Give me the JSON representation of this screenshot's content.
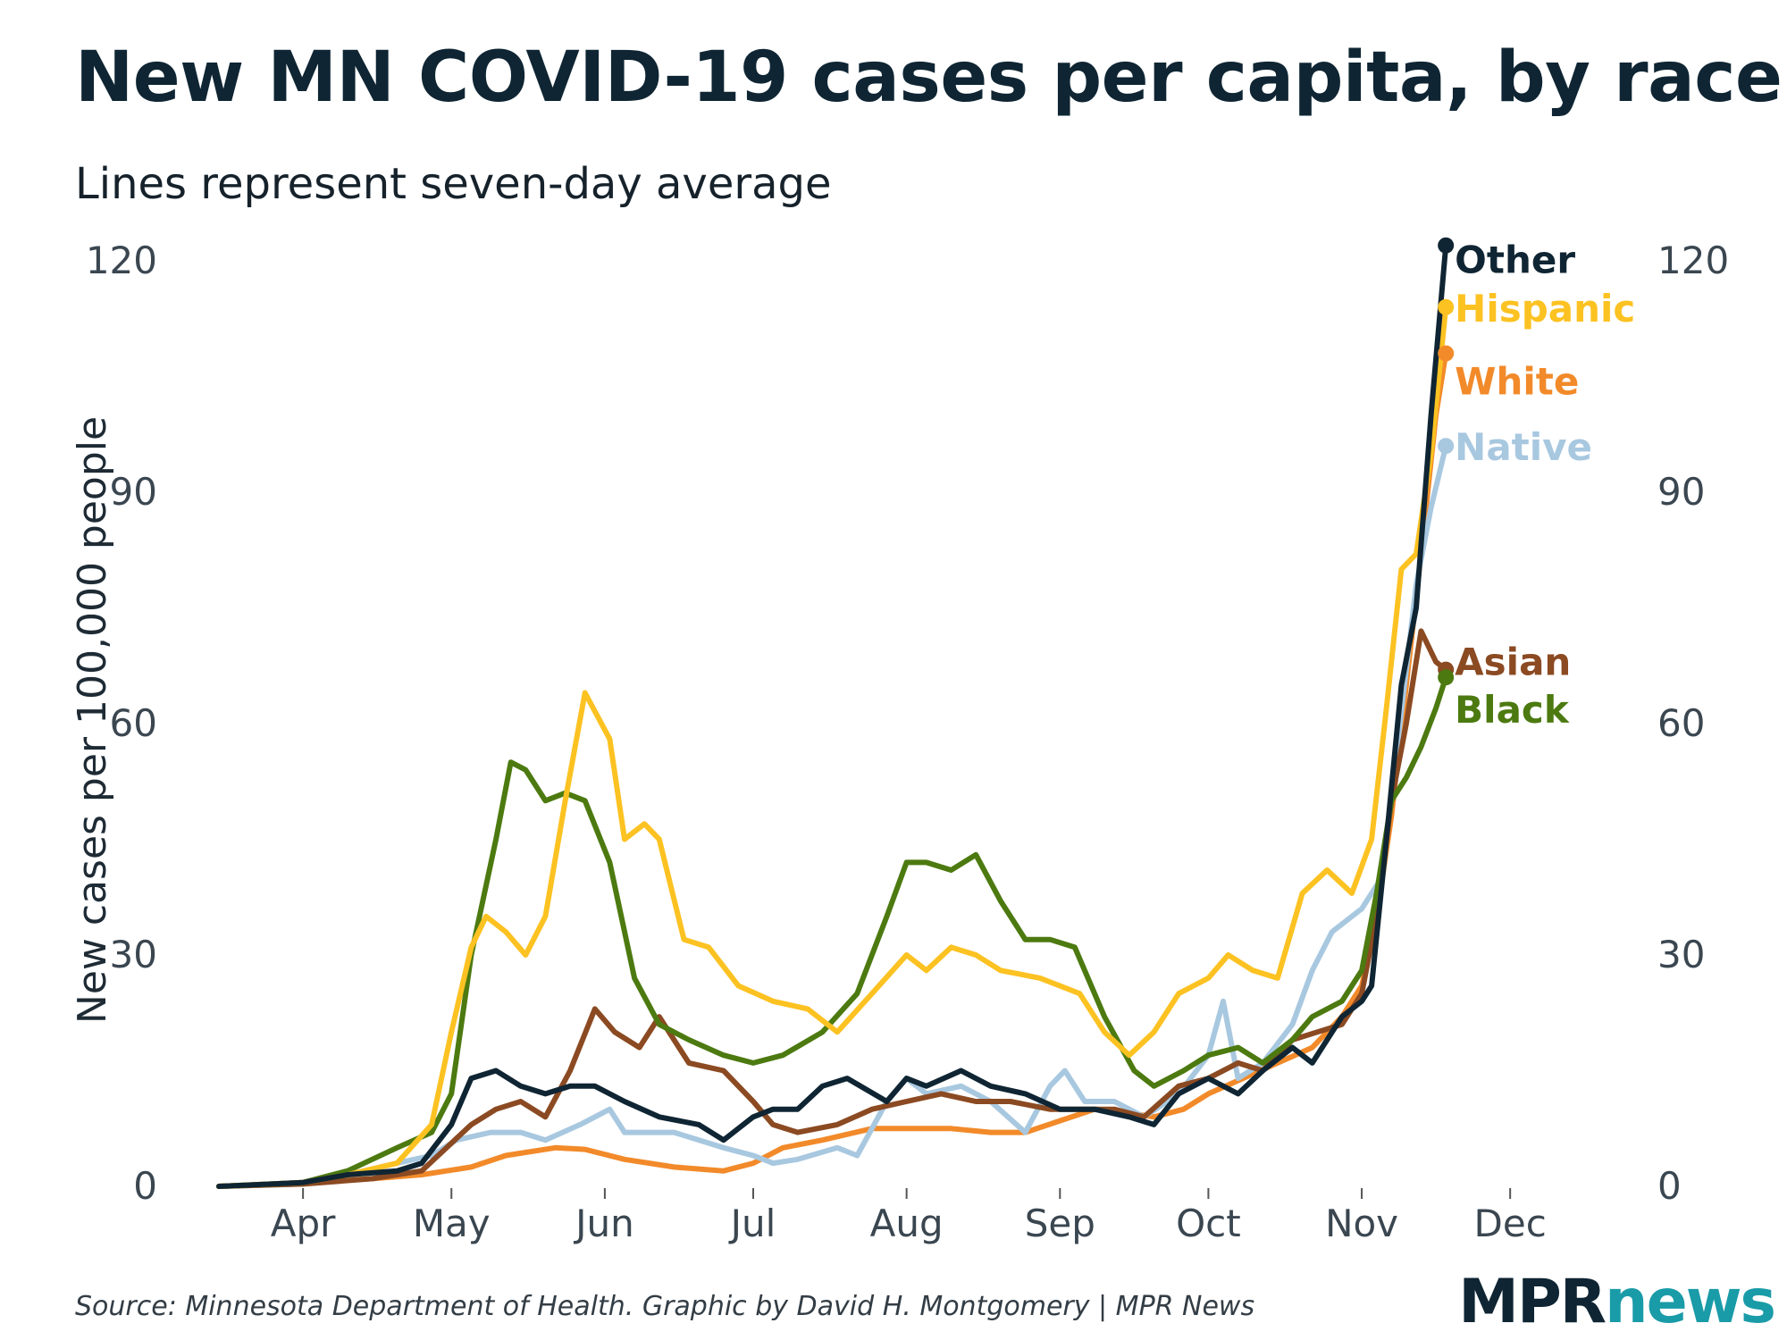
{
  "header": {
    "title": "New MN COVID-19 cases per capita, by race",
    "subtitle": "Lines represent seven-day average"
  },
  "footer": {
    "source": "Source: Minnesota Department of Health. Graphic by David H. Montgomery | MPR News",
    "logo_part1": "MPR",
    "logo_part2": "news"
  },
  "chart_data": {
    "type": "line",
    "title": "New MN COVID-19 cases per capita, by race",
    "subtitle": "Lines represent seven-day average",
    "ylabel": "New cases per 100,000 people",
    "xlabel": "",
    "ylim": [
      0,
      120
    ],
    "yticks": [
      0,
      30,
      60,
      90,
      120
    ],
    "xlim": [
      "2020-03-15",
      "2020-12-10"
    ],
    "xticks": [
      {
        "date": "2020-04-01",
        "label": "Apr"
      },
      {
        "date": "2020-05-01",
        "label": "May"
      },
      {
        "date": "2020-06-01",
        "label": "Jun"
      },
      {
        "date": "2020-07-01",
        "label": "Jul"
      },
      {
        "date": "2020-08-01",
        "label": "Aug"
      },
      {
        "date": "2020-09-01",
        "label": "Sep"
      },
      {
        "date": "2020-10-01",
        "label": "Oct"
      },
      {
        "date": "2020-11-01",
        "label": "Nov"
      },
      {
        "date": "2020-12-01",
        "label": "Dec"
      }
    ],
    "grid": false,
    "legend": "direct labels at line ends",
    "series": [
      {
        "name": "White",
        "color": "#f28a2a",
        "label_dy": 30,
        "points": [
          [
            "2020-03-15",
            0
          ],
          [
            "2020-04-01",
            0.5
          ],
          [
            "2020-04-15",
            1
          ],
          [
            "2020-04-25",
            1.5
          ],
          [
            "2020-05-05",
            2.5
          ],
          [
            "2020-05-12",
            4
          ],
          [
            "2020-05-22",
            5
          ],
          [
            "2020-05-28",
            4.8
          ],
          [
            "2020-06-05",
            3.5
          ],
          [
            "2020-06-15",
            2.5
          ],
          [
            "2020-06-25",
            2
          ],
          [
            "2020-07-01",
            3
          ],
          [
            "2020-07-07",
            5
          ],
          [
            "2020-07-15",
            6
          ],
          [
            "2020-07-25",
            7.5
          ],
          [
            "2020-08-01",
            7.5
          ],
          [
            "2020-08-10",
            7.5
          ],
          [
            "2020-08-18",
            7
          ],
          [
            "2020-08-25",
            7
          ],
          [
            "2020-09-01",
            8.5
          ],
          [
            "2020-09-08",
            10
          ],
          [
            "2020-09-15",
            9.5
          ],
          [
            "2020-09-20",
            9
          ],
          [
            "2020-09-26",
            10
          ],
          [
            "2020-10-01",
            12
          ],
          [
            "2020-10-08",
            14
          ],
          [
            "2020-10-15",
            16
          ],
          [
            "2020-10-22",
            18
          ],
          [
            "2020-10-28",
            22
          ],
          [
            "2020-11-01",
            26
          ],
          [
            "2020-11-04",
            35
          ],
          [
            "2020-11-07",
            48
          ],
          [
            "2020-11-10",
            65
          ],
          [
            "2020-11-13",
            82
          ],
          [
            "2020-11-16",
            100
          ],
          [
            "2020-11-18",
            108
          ]
        ]
      },
      {
        "name": "Native",
        "color": "#a8c8e0",
        "label_dy": 0,
        "points": [
          [
            "2020-03-15",
            0
          ],
          [
            "2020-04-01",
            0.3
          ],
          [
            "2020-04-10",
            1.5
          ],
          [
            "2020-04-20",
            3
          ],
          [
            "2020-04-27",
            4
          ],
          [
            "2020-05-02",
            6
          ],
          [
            "2020-05-09",
            7
          ],
          [
            "2020-05-15",
            7
          ],
          [
            "2020-05-20",
            6
          ],
          [
            "2020-05-27",
            8
          ],
          [
            "2020-06-02",
            10
          ],
          [
            "2020-06-05",
            7
          ],
          [
            "2020-06-15",
            7
          ],
          [
            "2020-06-25",
            5
          ],
          [
            "2020-07-01",
            4
          ],
          [
            "2020-07-05",
            3
          ],
          [
            "2020-07-10",
            3.5
          ],
          [
            "2020-07-18",
            5
          ],
          [
            "2020-07-22",
            4
          ],
          [
            "2020-07-28",
            11
          ],
          [
            "2020-08-01",
            14
          ],
          [
            "2020-08-05",
            12
          ],
          [
            "2020-08-12",
            13
          ],
          [
            "2020-08-18",
            11
          ],
          [
            "2020-08-25",
            7
          ],
          [
            "2020-08-30",
            13
          ],
          [
            "2020-09-02",
            15
          ],
          [
            "2020-09-06",
            11
          ],
          [
            "2020-09-12",
            11
          ],
          [
            "2020-09-18",
            9
          ],
          [
            "2020-09-25",
            12
          ],
          [
            "2020-10-01",
            17
          ],
          [
            "2020-10-04",
            24
          ],
          [
            "2020-10-07",
            14
          ],
          [
            "2020-10-12",
            16
          ],
          [
            "2020-10-18",
            21
          ],
          [
            "2020-10-22",
            28
          ],
          [
            "2020-10-26",
            33
          ],
          [
            "2020-11-01",
            36
          ],
          [
            "2020-11-05",
            40
          ],
          [
            "2020-11-08",
            56
          ],
          [
            "2020-11-12",
            78
          ],
          [
            "2020-11-15",
            88
          ],
          [
            "2020-11-18",
            96
          ]
        ]
      },
      {
        "name": "Asian",
        "color": "#8b4a22",
        "label_dy": -10,
        "points": [
          [
            "2020-03-15",
            0
          ],
          [
            "2020-04-01",
            0.3
          ],
          [
            "2020-04-15",
            1
          ],
          [
            "2020-04-25",
            2
          ],
          [
            "2020-04-30",
            5
          ],
          [
            "2020-05-05",
            8
          ],
          [
            "2020-05-10",
            10
          ],
          [
            "2020-05-15",
            11
          ],
          [
            "2020-05-20",
            9
          ],
          [
            "2020-05-25",
            15
          ],
          [
            "2020-05-30",
            23
          ],
          [
            "2020-06-03",
            20
          ],
          [
            "2020-06-08",
            18
          ],
          [
            "2020-06-12",
            22
          ],
          [
            "2020-06-18",
            16
          ],
          [
            "2020-06-25",
            15
          ],
          [
            "2020-07-01",
            11
          ],
          [
            "2020-07-05",
            8
          ],
          [
            "2020-07-10",
            7
          ],
          [
            "2020-07-18",
            8
          ],
          [
            "2020-07-25",
            10
          ],
          [
            "2020-08-01",
            11
          ],
          [
            "2020-08-08",
            12
          ],
          [
            "2020-08-15",
            11
          ],
          [
            "2020-08-22",
            11
          ],
          [
            "2020-08-30",
            10
          ],
          [
            "2020-09-05",
            10
          ],
          [
            "2020-09-12",
            10
          ],
          [
            "2020-09-18",
            9
          ],
          [
            "2020-09-25",
            13
          ],
          [
            "2020-10-01",
            14
          ],
          [
            "2020-10-07",
            16
          ],
          [
            "2020-10-12",
            15
          ],
          [
            "2020-10-18",
            19
          ],
          [
            "2020-10-23",
            20
          ],
          [
            "2020-10-28",
            21
          ],
          [
            "2020-11-01",
            25
          ],
          [
            "2020-11-04",
            35
          ],
          [
            "2020-11-07",
            50
          ],
          [
            "2020-11-10",
            60
          ],
          [
            "2020-11-13",
            72
          ],
          [
            "2020-11-16",
            68
          ],
          [
            "2020-11-18",
            67
          ]
        ]
      },
      {
        "name": "Black",
        "color": "#4c7a10",
        "label_dy": 35,
        "points": [
          [
            "2020-03-15",
            0
          ],
          [
            "2020-04-01",
            0.5
          ],
          [
            "2020-04-10",
            2
          ],
          [
            "2020-04-20",
            5
          ],
          [
            "2020-04-27",
            7
          ],
          [
            "2020-05-01",
            12
          ],
          [
            "2020-05-05",
            30
          ],
          [
            "2020-05-10",
            45
          ],
          [
            "2020-05-13",
            55
          ],
          [
            "2020-05-16",
            54
          ],
          [
            "2020-05-20",
            50
          ],
          [
            "2020-05-24",
            51
          ],
          [
            "2020-05-28",
            50
          ],
          [
            "2020-06-02",
            42
          ],
          [
            "2020-06-07",
            27
          ],
          [
            "2020-06-12",
            21
          ],
          [
            "2020-06-18",
            19
          ],
          [
            "2020-06-25",
            17
          ],
          [
            "2020-07-01",
            16
          ],
          [
            "2020-07-07",
            17
          ],
          [
            "2020-07-15",
            20
          ],
          [
            "2020-07-22",
            25
          ],
          [
            "2020-07-28",
            35
          ],
          [
            "2020-08-01",
            42
          ],
          [
            "2020-08-05",
            42
          ],
          [
            "2020-08-10",
            41
          ],
          [
            "2020-08-15",
            43
          ],
          [
            "2020-08-20",
            37
          ],
          [
            "2020-08-25",
            32
          ],
          [
            "2020-08-30",
            32
          ],
          [
            "2020-09-04",
            31
          ],
          [
            "2020-09-10",
            22
          ],
          [
            "2020-09-16",
            15
          ],
          [
            "2020-09-20",
            13
          ],
          [
            "2020-09-26",
            15
          ],
          [
            "2020-10-01",
            17
          ],
          [
            "2020-10-07",
            18
          ],
          [
            "2020-10-12",
            16
          ],
          [
            "2020-10-18",
            19
          ],
          [
            "2020-10-22",
            22
          ],
          [
            "2020-10-28",
            24
          ],
          [
            "2020-11-01",
            28
          ],
          [
            "2020-11-04",
            38
          ],
          [
            "2020-11-07",
            50
          ],
          [
            "2020-11-10",
            53
          ],
          [
            "2020-11-13",
            57
          ],
          [
            "2020-11-16",
            62
          ],
          [
            "2020-11-18",
            66
          ]
        ]
      },
      {
        "name": "Hispanic",
        "color": "#fcc222",
        "label_dy": 0,
        "points": [
          [
            "2020-03-15",
            0
          ],
          [
            "2020-04-01",
            0.5
          ],
          [
            "2020-04-10",
            1.5
          ],
          [
            "2020-04-20",
            3
          ],
          [
            "2020-04-27",
            8
          ],
          [
            "2020-05-01",
            20
          ],
          [
            "2020-05-05",
            31
          ],
          [
            "2020-05-08",
            35
          ],
          [
            "2020-05-12",
            33
          ],
          [
            "2020-05-16",
            30
          ],
          [
            "2020-05-20",
            35
          ],
          [
            "2020-05-24",
            50
          ],
          [
            "2020-05-28",
            64
          ],
          [
            "2020-06-02",
            58
          ],
          [
            "2020-06-05",
            45
          ],
          [
            "2020-06-09",
            47
          ],
          [
            "2020-06-12",
            45
          ],
          [
            "2020-06-17",
            32
          ],
          [
            "2020-06-22",
            31
          ],
          [
            "2020-06-28",
            26
          ],
          [
            "2020-07-05",
            24
          ],
          [
            "2020-07-12",
            23
          ],
          [
            "2020-07-18",
            20
          ],
          [
            "2020-07-25",
            25
          ],
          [
            "2020-08-01",
            30
          ],
          [
            "2020-08-05",
            28
          ],
          [
            "2020-08-10",
            31
          ],
          [
            "2020-08-15",
            30
          ],
          [
            "2020-08-20",
            28
          ],
          [
            "2020-08-28",
            27
          ],
          [
            "2020-09-05",
            25
          ],
          [
            "2020-09-10",
            20
          ],
          [
            "2020-09-15",
            17
          ],
          [
            "2020-09-20",
            20
          ],
          [
            "2020-09-25",
            25
          ],
          [
            "2020-10-01",
            27
          ],
          [
            "2020-10-05",
            30
          ],
          [
            "2020-10-10",
            28
          ],
          [
            "2020-10-15",
            27
          ],
          [
            "2020-10-20",
            38
          ],
          [
            "2020-10-25",
            41
          ],
          [
            "2020-10-30",
            38
          ],
          [
            "2020-11-03",
            45
          ],
          [
            "2020-11-06",
            62
          ],
          [
            "2020-11-09",
            80
          ],
          [
            "2020-11-12",
            82
          ],
          [
            "2020-11-15",
            95
          ],
          [
            "2020-11-18",
            114
          ]
        ]
      },
      {
        "name": "Other",
        "color": "#0f2533",
        "label_dy": 15,
        "points": [
          [
            "2020-03-15",
            0
          ],
          [
            "2020-04-01",
            0.5
          ],
          [
            "2020-04-10",
            1.5
          ],
          [
            "2020-04-20",
            2
          ],
          [
            "2020-04-25",
            3
          ],
          [
            "2020-05-01",
            8
          ],
          [
            "2020-05-05",
            14
          ],
          [
            "2020-05-10",
            15
          ],
          [
            "2020-05-15",
            13
          ],
          [
            "2020-05-20",
            12
          ],
          [
            "2020-05-25",
            13
          ],
          [
            "2020-05-30",
            13
          ],
          [
            "2020-06-05",
            11
          ],
          [
            "2020-06-12",
            9
          ],
          [
            "2020-06-20",
            8
          ],
          [
            "2020-06-25",
            6
          ],
          [
            "2020-07-01",
            9
          ],
          [
            "2020-07-05",
            10
          ],
          [
            "2020-07-10",
            10
          ],
          [
            "2020-07-15",
            13
          ],
          [
            "2020-07-20",
            14
          ],
          [
            "2020-07-28",
            11
          ],
          [
            "2020-08-01",
            14
          ],
          [
            "2020-08-05",
            13
          ],
          [
            "2020-08-12",
            15
          ],
          [
            "2020-08-18",
            13
          ],
          [
            "2020-08-25",
            12
          ],
          [
            "2020-09-01",
            10
          ],
          [
            "2020-09-08",
            10
          ],
          [
            "2020-09-15",
            9
          ],
          [
            "2020-09-20",
            8
          ],
          [
            "2020-09-25",
            12
          ],
          [
            "2020-10-01",
            14
          ],
          [
            "2020-10-07",
            12
          ],
          [
            "2020-10-12",
            15
          ],
          [
            "2020-10-18",
            18
          ],
          [
            "2020-10-22",
            16
          ],
          [
            "2020-10-28",
            22
          ],
          [
            "2020-11-01",
            24
          ],
          [
            "2020-11-03",
            26
          ],
          [
            "2020-11-06",
            45
          ],
          [
            "2020-11-09",
            65
          ],
          [
            "2020-11-12",
            75
          ],
          [
            "2020-11-15",
            100
          ],
          [
            "2020-11-18",
            122
          ]
        ]
      }
    ]
  }
}
